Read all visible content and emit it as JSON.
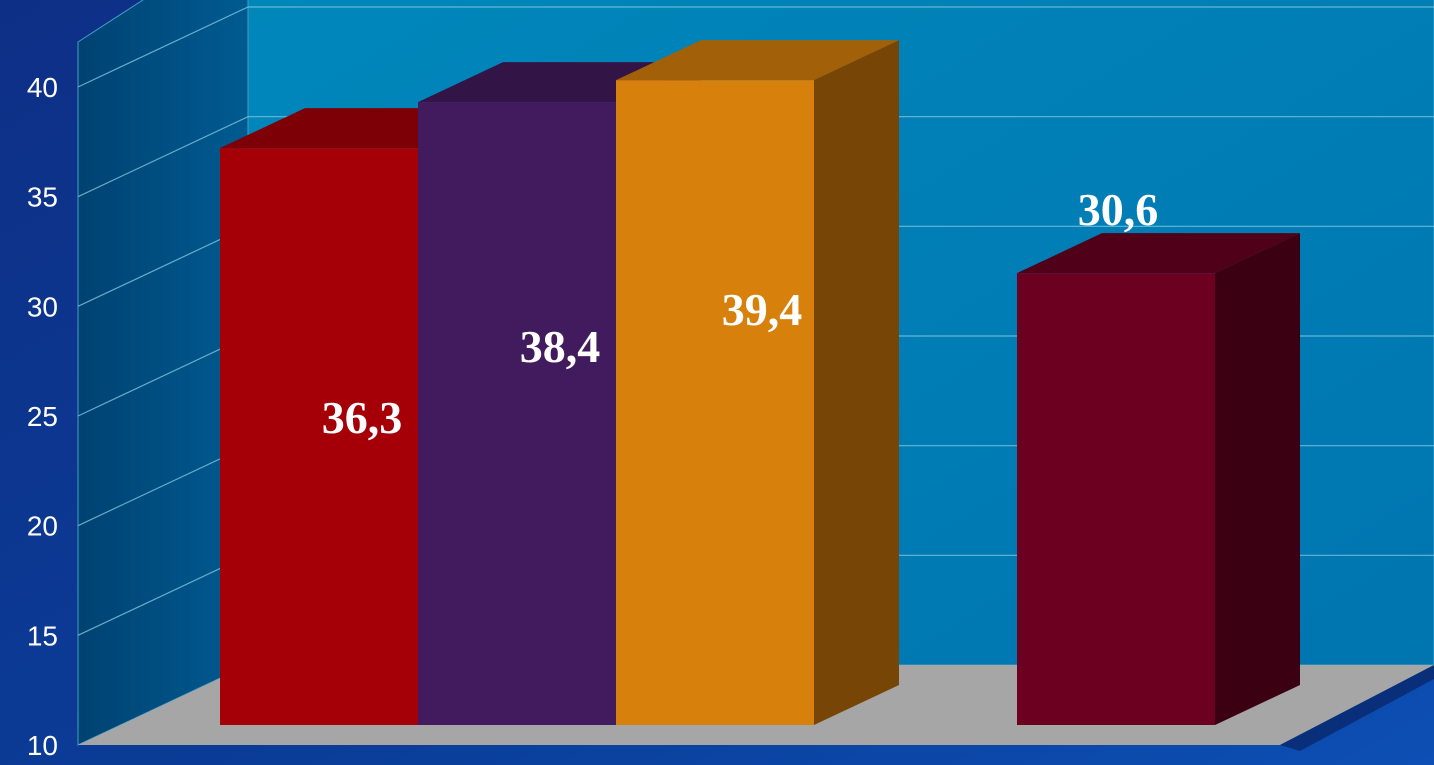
{
  "chart_data": {
    "type": "bar",
    "title": "",
    "xlabel": "",
    "ylabel": "",
    "ylim": [
      10,
      40
    ],
    "yticks": [
      10,
      15,
      20,
      25,
      30,
      35,
      40
    ],
    "ytick_labels": [
      "10",
      "15",
      "20",
      "25",
      "30",
      "35",
      "40"
    ],
    "grid": true,
    "three_d": true,
    "bars": [
      {
        "value": 36.3,
        "label": "36,3",
        "color": "#a50008",
        "group": 0
      },
      {
        "value": 38.4,
        "label": "38,4",
        "color": "#421a5e",
        "group": 0
      },
      {
        "value": 39.4,
        "label": "39,4",
        "color": "#d8800c",
        "group": 0
      },
      {
        "value": 30.6,
        "label": "30,6",
        "color": "#6b0020",
        "group": 1
      }
    ]
  },
  "colors": {
    "background": "#0b3a8e",
    "back_wall": "#0086b8",
    "side_wall": "#00538a",
    "floor": "#a6a6a6",
    "label_text": "#ffffff"
  }
}
